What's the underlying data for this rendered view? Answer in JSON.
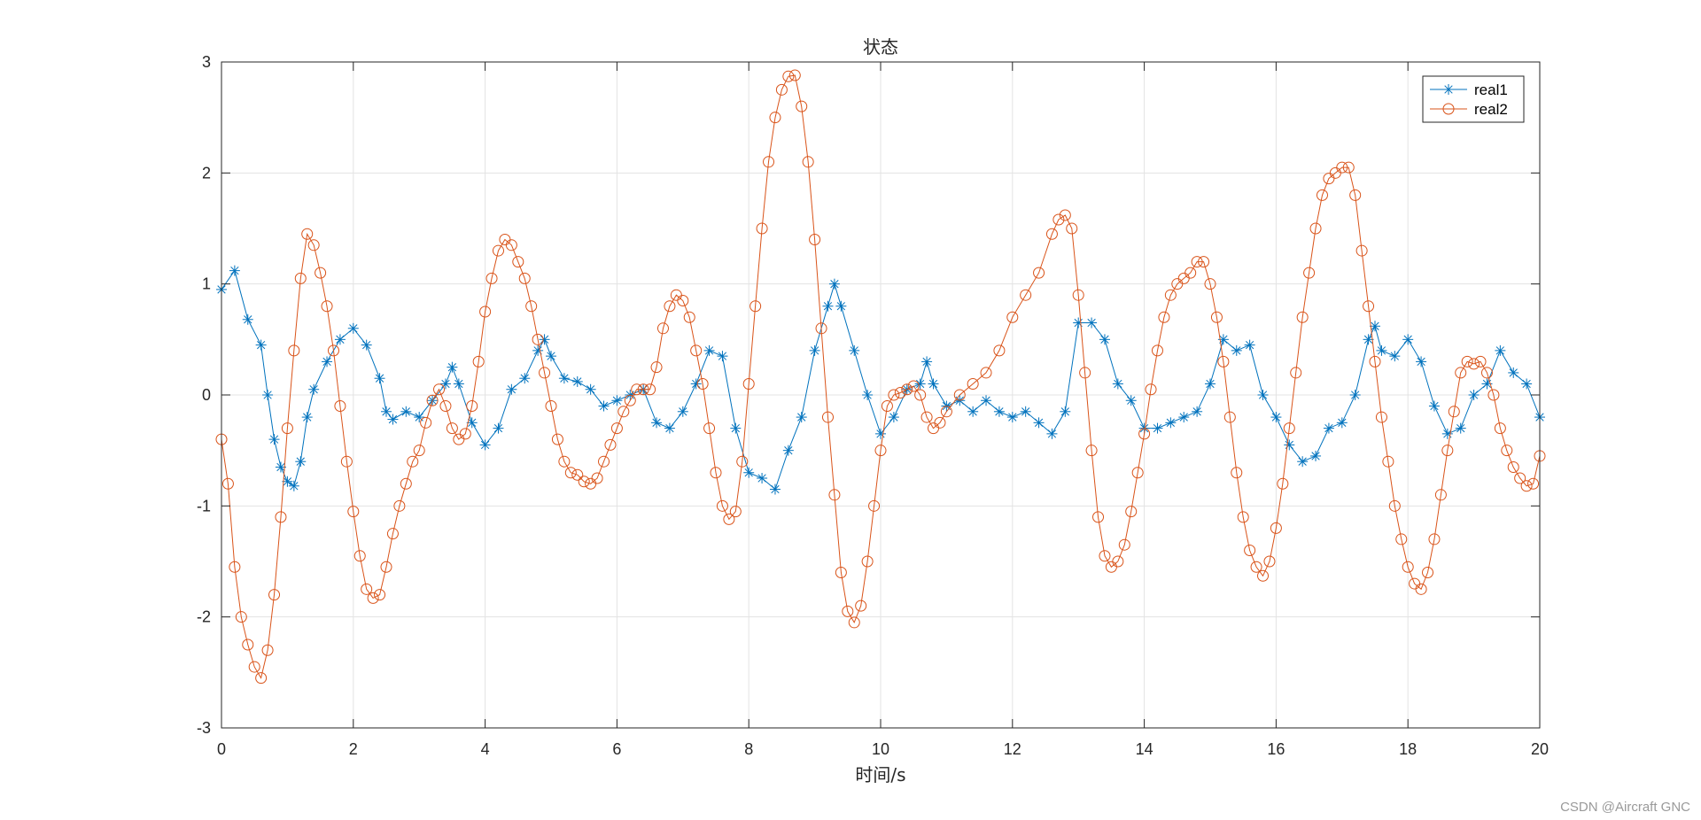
{
  "watermark": "CSDN @Aircraft GNC",
  "chart_data": {
    "type": "line",
    "title": "状态",
    "xlabel": "时间/s",
    "ylabel": "",
    "xlim": [
      0,
      20
    ],
    "ylim": [
      -3,
      3
    ],
    "xticks": [
      0,
      2,
      4,
      6,
      8,
      10,
      12,
      14,
      16,
      18,
      20
    ],
    "yticks": [
      -3,
      -2,
      -1,
      0,
      1,
      2,
      3
    ],
    "grid": true,
    "legend_position": "top-right",
    "colors": {
      "real1": "#0072BD",
      "real2": "#D95319",
      "grid": "#e3e3e3",
      "axis": "#262626"
    },
    "series": [
      {
        "name": "real1",
        "marker": "asterisk",
        "color": "#0072BD",
        "points": [
          [
            0,
            0.95
          ],
          [
            0.2,
            1.12
          ],
          [
            0.4,
            0.68
          ],
          [
            0.6,
            0.45
          ],
          [
            0.7,
            0.0
          ],
          [
            0.8,
            -0.4
          ],
          [
            0.9,
            -0.65
          ],
          [
            1.0,
            -0.78
          ],
          [
            1.1,
            -0.82
          ],
          [
            1.2,
            -0.6
          ],
          [
            1.3,
            -0.2
          ],
          [
            1.4,
            0.05
          ],
          [
            1.6,
            0.3
          ],
          [
            1.8,
            0.5
          ],
          [
            2.0,
            0.6
          ],
          [
            2.2,
            0.45
          ],
          [
            2.4,
            0.15
          ],
          [
            2.5,
            -0.15
          ],
          [
            2.6,
            -0.22
          ],
          [
            2.8,
            -0.15
          ],
          [
            3.0,
            -0.2
          ],
          [
            3.2,
            -0.05
          ],
          [
            3.4,
            0.1
          ],
          [
            3.5,
            0.25
          ],
          [
            3.6,
            0.1
          ],
          [
            3.8,
            -0.25
          ],
          [
            4.0,
            -0.45
          ],
          [
            4.2,
            -0.3
          ],
          [
            4.4,
            0.05
          ],
          [
            4.6,
            0.15
          ],
          [
            4.8,
            0.4
          ],
          [
            4.9,
            0.5
          ],
          [
            5.0,
            0.35
          ],
          [
            5.2,
            0.15
          ],
          [
            5.4,
            0.12
          ],
          [
            5.6,
            0.05
          ],
          [
            5.8,
            -0.1
          ],
          [
            6.0,
            -0.05
          ],
          [
            6.2,
            0.0
          ],
          [
            6.4,
            0.05
          ],
          [
            6.6,
            -0.25
          ],
          [
            6.8,
            -0.3
          ],
          [
            7.0,
            -0.15
          ],
          [
            7.2,
            0.1
          ],
          [
            7.4,
            0.4
          ],
          [
            7.6,
            0.35
          ],
          [
            7.8,
            -0.3
          ],
          [
            8.0,
            -0.7
          ],
          [
            8.2,
            -0.75
          ],
          [
            8.4,
            -0.85
          ],
          [
            8.6,
            -0.5
          ],
          [
            8.8,
            -0.2
          ],
          [
            9.0,
            0.4
          ],
          [
            9.2,
            0.8
          ],
          [
            9.3,
            1.0
          ],
          [
            9.4,
            0.8
          ],
          [
            9.6,
            0.4
          ],
          [
            9.8,
            0.0
          ],
          [
            10.0,
            -0.35
          ],
          [
            10.2,
            -0.2
          ],
          [
            10.4,
            0.05
          ],
          [
            10.6,
            0.1
          ],
          [
            10.7,
            0.3
          ],
          [
            10.8,
            0.1
          ],
          [
            11.0,
            -0.1
          ],
          [
            11.2,
            -0.05
          ],
          [
            11.4,
            -0.15
          ],
          [
            11.6,
            -0.05
          ],
          [
            11.8,
            -0.15
          ],
          [
            12.0,
            -0.2
          ],
          [
            12.2,
            -0.15
          ],
          [
            12.4,
            -0.25
          ],
          [
            12.6,
            -0.35
          ],
          [
            12.8,
            -0.15
          ],
          [
            13.0,
            0.65
          ],
          [
            13.2,
            0.65
          ],
          [
            13.4,
            0.5
          ],
          [
            13.6,
            0.1
          ],
          [
            13.8,
            -0.05
          ],
          [
            14.0,
            -0.3
          ],
          [
            14.2,
            -0.3
          ],
          [
            14.4,
            -0.25
          ],
          [
            14.6,
            -0.2
          ],
          [
            14.8,
            -0.15
          ],
          [
            15.0,
            0.1
          ],
          [
            15.2,
            0.5
          ],
          [
            15.4,
            0.4
          ],
          [
            15.6,
            0.45
          ],
          [
            15.8,
            0.0
          ],
          [
            16.0,
            -0.2
          ],
          [
            16.2,
            -0.45
          ],
          [
            16.4,
            -0.6
          ],
          [
            16.6,
            -0.55
          ],
          [
            16.8,
            -0.3
          ],
          [
            17.0,
            -0.25
          ],
          [
            17.2,
            0.0
          ],
          [
            17.4,
            0.5
          ],
          [
            17.5,
            0.62
          ],
          [
            17.6,
            0.4
          ],
          [
            17.8,
            0.35
          ],
          [
            18.0,
            0.5
          ],
          [
            18.2,
            0.3
          ],
          [
            18.4,
            -0.1
          ],
          [
            18.6,
            -0.35
          ],
          [
            18.8,
            -0.3
          ],
          [
            19.0,
            0.0
          ],
          [
            19.2,
            0.1
          ],
          [
            19.4,
            0.4
          ],
          [
            19.6,
            0.2
          ],
          [
            19.8,
            0.1
          ],
          [
            20.0,
            -0.2
          ]
        ]
      },
      {
        "name": "real2",
        "marker": "circle",
        "color": "#D95319",
        "points": [
          [
            0,
            -0.4
          ],
          [
            0.1,
            -0.8
          ],
          [
            0.2,
            -1.55
          ],
          [
            0.3,
            -2.0
          ],
          [
            0.4,
            -2.25
          ],
          [
            0.5,
            -2.45
          ],
          [
            0.6,
            -2.55
          ],
          [
            0.7,
            -2.3
          ],
          [
            0.8,
            -1.8
          ],
          [
            0.9,
            -1.1
          ],
          [
            1.0,
            -0.3
          ],
          [
            1.1,
            0.4
          ],
          [
            1.2,
            1.05
          ],
          [
            1.3,
            1.45
          ],
          [
            1.4,
            1.35
          ],
          [
            1.5,
            1.1
          ],
          [
            1.6,
            0.8
          ],
          [
            1.7,
            0.4
          ],
          [
            1.8,
            -0.1
          ],
          [
            1.9,
            -0.6
          ],
          [
            2.0,
            -1.05
          ],
          [
            2.1,
            -1.45
          ],
          [
            2.2,
            -1.75
          ],
          [
            2.3,
            -1.83
          ],
          [
            2.4,
            -1.8
          ],
          [
            2.5,
            -1.55
          ],
          [
            2.6,
            -1.25
          ],
          [
            2.7,
            -1.0
          ],
          [
            2.8,
            -0.8
          ],
          [
            2.9,
            -0.6
          ],
          [
            3.0,
            -0.5
          ],
          [
            3.1,
            -0.25
          ],
          [
            3.2,
            -0.05
          ],
          [
            3.3,
            0.05
          ],
          [
            3.4,
            -0.1
          ],
          [
            3.5,
            -0.3
          ],
          [
            3.6,
            -0.4
          ],
          [
            3.7,
            -0.35
          ],
          [
            3.8,
            -0.1
          ],
          [
            3.9,
            0.3
          ],
          [
            4.0,
            0.75
          ],
          [
            4.1,
            1.05
          ],
          [
            4.2,
            1.3
          ],
          [
            4.3,
            1.4
          ],
          [
            4.4,
            1.35
          ],
          [
            4.5,
            1.2
          ],
          [
            4.6,
            1.05
          ],
          [
            4.7,
            0.8
          ],
          [
            4.8,
            0.5
          ],
          [
            4.9,
            0.2
          ],
          [
            5.0,
            -0.1
          ],
          [
            5.1,
            -0.4
          ],
          [
            5.2,
            -0.6
          ],
          [
            5.3,
            -0.7
          ],
          [
            5.4,
            -0.72
          ],
          [
            5.5,
            -0.78
          ],
          [
            5.6,
            -0.8
          ],
          [
            5.7,
            -0.75
          ],
          [
            5.8,
            -0.6
          ],
          [
            5.9,
            -0.45
          ],
          [
            6.0,
            -0.3
          ],
          [
            6.1,
            -0.15
          ],
          [
            6.2,
            -0.05
          ],
          [
            6.3,
            0.05
          ],
          [
            6.4,
            0.05
          ],
          [
            6.5,
            0.05
          ],
          [
            6.6,
            0.25
          ],
          [
            6.7,
            0.6
          ],
          [
            6.8,
            0.8
          ],
          [
            6.9,
            0.9
          ],
          [
            7.0,
            0.85
          ],
          [
            7.1,
            0.7
          ],
          [
            7.2,
            0.4
          ],
          [
            7.3,
            0.1
          ],
          [
            7.4,
            -0.3
          ],
          [
            7.5,
            -0.7
          ],
          [
            7.6,
            -1.0
          ],
          [
            7.7,
            -1.12
          ],
          [
            7.8,
            -1.05
          ],
          [
            7.9,
            -0.6
          ],
          [
            8.0,
            0.1
          ],
          [
            8.1,
            0.8
          ],
          [
            8.2,
            1.5
          ],
          [
            8.3,
            2.1
          ],
          [
            8.4,
            2.5
          ],
          [
            8.5,
            2.75
          ],
          [
            8.6,
            2.87
          ],
          [
            8.7,
            2.88
          ],
          [
            8.8,
            2.6
          ],
          [
            8.9,
            2.1
          ],
          [
            9.0,
            1.4
          ],
          [
            9.1,
            0.6
          ],
          [
            9.2,
            -0.2
          ],
          [
            9.3,
            -0.9
          ],
          [
            9.4,
            -1.6
          ],
          [
            9.5,
            -1.95
          ],
          [
            9.6,
            -2.05
          ],
          [
            9.7,
            -1.9
          ],
          [
            9.8,
            -1.5
          ],
          [
            9.9,
            -1.0
          ],
          [
            10.0,
            -0.5
          ],
          [
            10.1,
            -0.1
          ],
          [
            10.2,
            0.0
          ],
          [
            10.3,
            0.02
          ],
          [
            10.4,
            0.05
          ],
          [
            10.5,
            0.08
          ],
          [
            10.6,
            0.0
          ],
          [
            10.7,
            -0.2
          ],
          [
            10.8,
            -0.3
          ],
          [
            10.9,
            -0.25
          ],
          [
            11.0,
            -0.15
          ],
          [
            11.2,
            0.0
          ],
          [
            11.4,
            0.1
          ],
          [
            11.6,
            0.2
          ],
          [
            11.8,
            0.4
          ],
          [
            12.0,
            0.7
          ],
          [
            12.2,
            0.9
          ],
          [
            12.4,
            1.1
          ],
          [
            12.6,
            1.45
          ],
          [
            12.7,
            1.58
          ],
          [
            12.8,
            1.62
          ],
          [
            12.9,
            1.5
          ],
          [
            13.0,
            0.9
          ],
          [
            13.1,
            0.2
          ],
          [
            13.2,
            -0.5
          ],
          [
            13.3,
            -1.1
          ],
          [
            13.4,
            -1.45
          ],
          [
            13.5,
            -1.55
          ],
          [
            13.6,
            -1.5
          ],
          [
            13.7,
            -1.35
          ],
          [
            13.8,
            -1.05
          ],
          [
            13.9,
            -0.7
          ],
          [
            14.0,
            -0.35
          ],
          [
            14.1,
            0.05
          ],
          [
            14.2,
            0.4
          ],
          [
            14.3,
            0.7
          ],
          [
            14.4,
            0.9
          ],
          [
            14.5,
            1.0
          ],
          [
            14.6,
            1.05
          ],
          [
            14.7,
            1.1
          ],
          [
            14.8,
            1.2
          ],
          [
            14.9,
            1.2
          ],
          [
            15.0,
            1.0
          ],
          [
            15.1,
            0.7
          ],
          [
            15.2,
            0.3
          ],
          [
            15.3,
            -0.2
          ],
          [
            15.4,
            -0.7
          ],
          [
            15.5,
            -1.1
          ],
          [
            15.6,
            -1.4
          ],
          [
            15.7,
            -1.55
          ],
          [
            15.8,
            -1.63
          ],
          [
            15.9,
            -1.5
          ],
          [
            16.0,
            -1.2
          ],
          [
            16.1,
            -0.8
          ],
          [
            16.2,
            -0.3
          ],
          [
            16.3,
            0.2
          ],
          [
            16.4,
            0.7
          ],
          [
            16.5,
            1.1
          ],
          [
            16.6,
            1.5
          ],
          [
            16.7,
            1.8
          ],
          [
            16.8,
            1.95
          ],
          [
            16.9,
            2.0
          ],
          [
            17.0,
            2.05
          ],
          [
            17.1,
            2.05
          ],
          [
            17.2,
            1.8
          ],
          [
            17.3,
            1.3
          ],
          [
            17.4,
            0.8
          ],
          [
            17.5,
            0.3
          ],
          [
            17.6,
            -0.2
          ],
          [
            17.7,
            -0.6
          ],
          [
            17.8,
            -1.0
          ],
          [
            17.9,
            -1.3
          ],
          [
            18.0,
            -1.55
          ],
          [
            18.1,
            -1.7
          ],
          [
            18.2,
            -1.75
          ],
          [
            18.3,
            -1.6
          ],
          [
            18.4,
            -1.3
          ],
          [
            18.5,
            -0.9
          ],
          [
            18.6,
            -0.5
          ],
          [
            18.7,
            -0.15
          ],
          [
            18.8,
            0.2
          ],
          [
            18.9,
            0.3
          ],
          [
            19.0,
            0.28
          ],
          [
            19.1,
            0.3
          ],
          [
            19.2,
            0.2
          ],
          [
            19.3,
            0.0
          ],
          [
            19.4,
            -0.3
          ],
          [
            19.5,
            -0.5
          ],
          [
            19.6,
            -0.65
          ],
          [
            19.7,
            -0.75
          ],
          [
            19.8,
            -0.82
          ],
          [
            19.9,
            -0.8
          ],
          [
            20.0,
            -0.55
          ]
        ]
      }
    ]
  }
}
